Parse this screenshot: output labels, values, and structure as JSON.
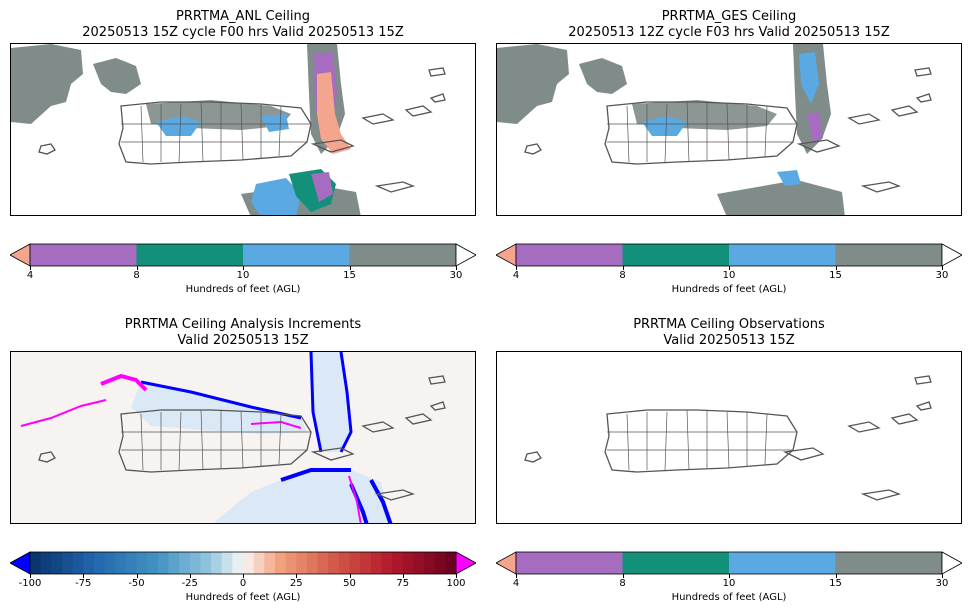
{
  "panels": [
    {
      "id": "anl",
      "title_line1": "PRRTMA_ANL Ceiling",
      "title_line2": "20250513 15Z cycle F00 hrs Valid 20250513 15Z"
    },
    {
      "id": "ges",
      "title_line1": "PRRTMA_GES Ceiling",
      "title_line2": "20250513 12Z cycle F03 hrs Valid 20250513 15Z"
    },
    {
      "id": "inc",
      "title_line1": "PRRTMA Ceiling Analysis Increments",
      "title_line2": "Valid 20250513 15Z"
    },
    {
      "id": "obs",
      "title_line1": "PRRTMA Ceiling Observations",
      "title_line2": "Valid 20250513 15Z"
    }
  ],
  "ceiling_colorbar": {
    "ticks": [
      "4",
      "8",
      "10",
      "15",
      "30"
    ],
    "label": "Hundreds of feet (AGL)",
    "colors": {
      "under": "#f4a58e",
      "c4_8": "#a56cc0",
      "c8_10": "#12907a",
      "c10_15": "#5aa9e2",
      "c15_30": "#7f8c8a",
      "over": "#ffffff"
    }
  },
  "increment_colorbar": {
    "ticks": [
      "-100",
      "-75",
      "-50",
      "-25",
      "0",
      "25",
      "50",
      "75",
      "100"
    ],
    "label": "Hundreds of feet (AGL)",
    "colors": {
      "under": "#0000ff",
      "over": "#ff00ff",
      "neg_end": "#08306b",
      "mid": "#f7f7f7",
      "pos_end": "#67001f"
    }
  },
  "map_colors": {
    "coast": "#555555",
    "island_fill": "none",
    "increment_bg": "#f7f3f1",
    "cloud_gray": "#7f8c8a",
    "cloud_blue": "#5aa9e2",
    "cloud_green": "#12907a",
    "cloud_purple": "#a56cc0",
    "cloud_salmon": "#f4a58e",
    "inc_blue": "#0000ff",
    "inc_magenta": "#ff00ff",
    "inc_light": "#dbe9f6"
  }
}
